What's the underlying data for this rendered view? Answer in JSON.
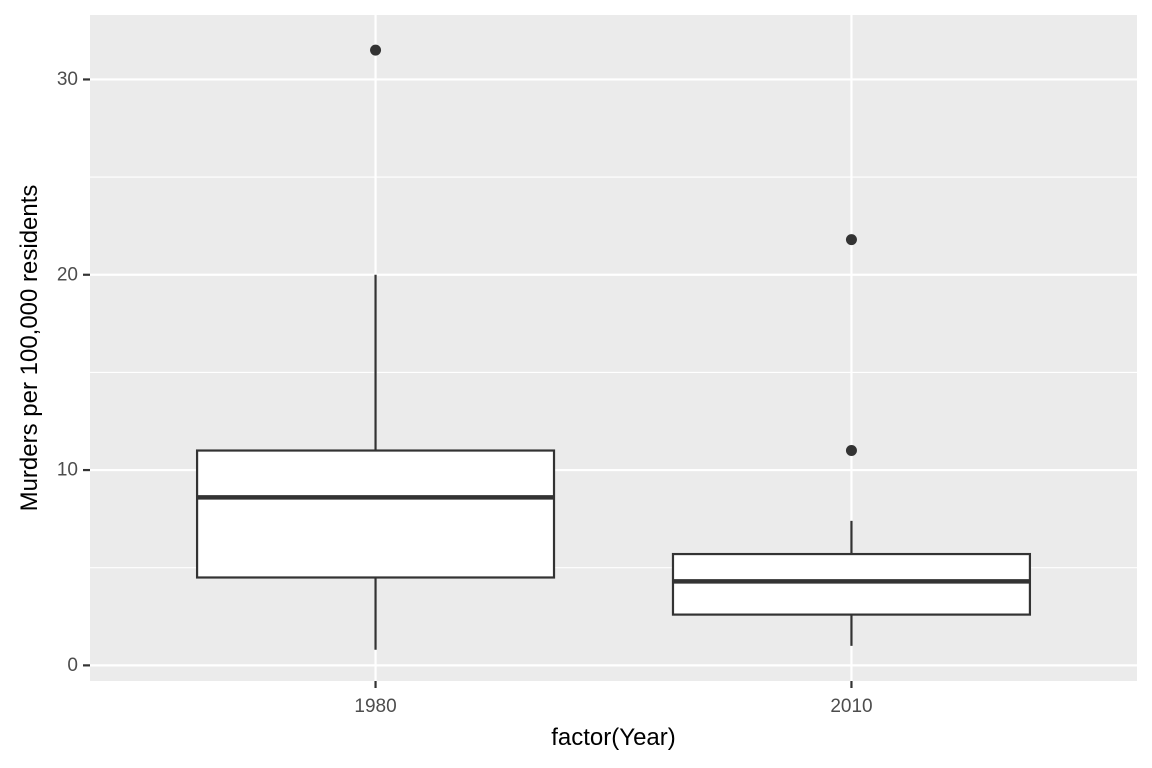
{
  "chart_data": {
    "type": "boxplot",
    "xlabel": "factor(Year)",
    "ylabel": "Murders per 100,000 residents",
    "categories": [
      "1980",
      "2010"
    ],
    "ylim": [
      -0.8,
      33.3
    ],
    "y_ticks": [
      0,
      10,
      20,
      30
    ],
    "y_tick_labels": [
      "0",
      "10",
      "20",
      "30"
    ],
    "grid": true,
    "boxes": [
      {
        "category": "1980",
        "lower_whisker": 0.8,
        "q1": 4.5,
        "median": 8.6,
        "q3": 11.0,
        "upper_whisker": 20.0,
        "outliers": [
          31.5
        ]
      },
      {
        "category": "2010",
        "lower_whisker": 1.0,
        "q1": 2.6,
        "median": 4.3,
        "q3": 5.7,
        "upper_whisker": 7.4,
        "outliers": [
          21.8,
          11.0
        ]
      }
    ],
    "colors": {
      "panel_background": "#ebebeb",
      "grid": "#ffffff",
      "box_fill": "#ffffff",
      "box_stroke": "#333333",
      "outlier": "#333333",
      "tick_text": "#4d4d4d",
      "axis_title": "#000000"
    }
  }
}
